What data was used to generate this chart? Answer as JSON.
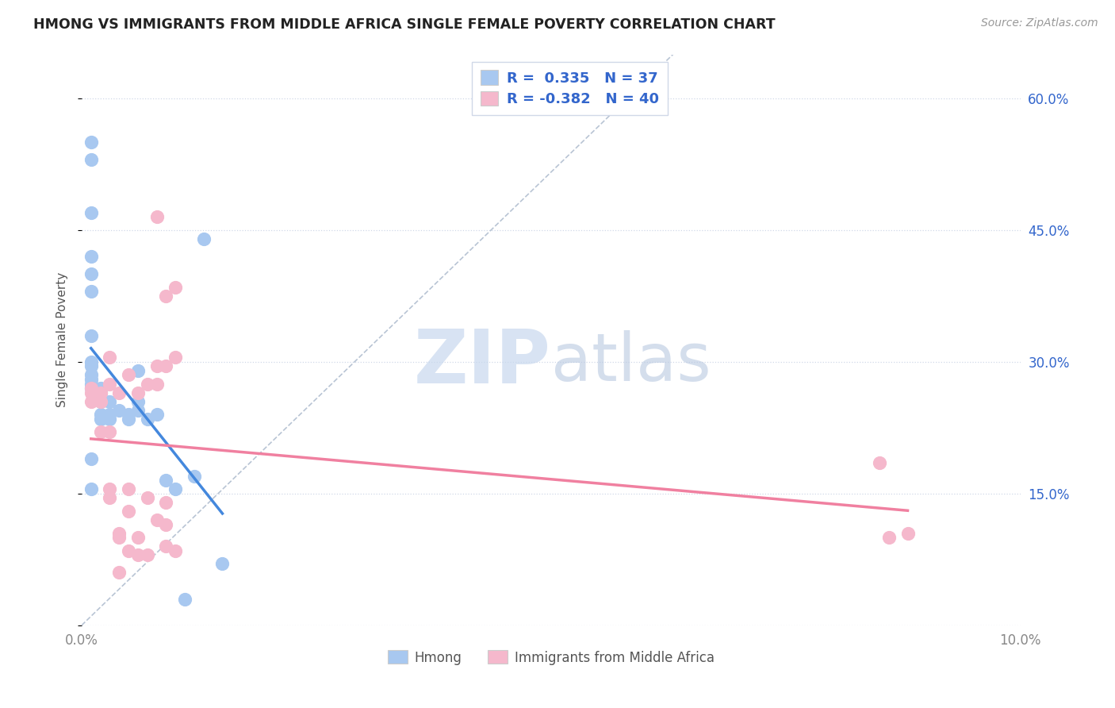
{
  "title": "HMONG VS IMMIGRANTS FROM MIDDLE AFRICA SINGLE FEMALE POVERTY CORRELATION CHART",
  "source": "Source: ZipAtlas.com",
  "ylabel": "Single Female Poverty",
  "x_min": 0.0,
  "x_max": 0.1,
  "y_min": 0.0,
  "y_max": 0.65,
  "x_ticks": [
    0.0,
    0.02,
    0.04,
    0.06,
    0.08,
    0.1
  ],
  "x_tick_labels": [
    "0.0%",
    "",
    "",
    "",
    "",
    "10.0%"
  ],
  "y_ticks": [
    0.0,
    0.15,
    0.3,
    0.45,
    0.6
  ],
  "y_tick_labels_right": [
    "",
    "15.0%",
    "30.0%",
    "45.0%",
    "60.0%"
  ],
  "hmong_R": 0.335,
  "hmong_N": 37,
  "africa_R": -0.382,
  "africa_N": 40,
  "hmong_color": "#a8c8f0",
  "africa_color": "#f5b8cc",
  "hmong_line_color": "#4488dd",
  "africa_line_color": "#f080a0",
  "dashed_line_color": "#b8c4d4",
  "legend_text_color": "#3366cc",
  "grid_color": "#d0d8e8",
  "watermark_zip_color": "#ccd8ee",
  "watermark_atlas_color": "#b8c8e0",
  "hmong_x": [
    0.001,
    0.001,
    0.001,
    0.001,
    0.001,
    0.001,
    0.001,
    0.001,
    0.001,
    0.001,
    0.001,
    0.001,
    0.001,
    0.001,
    0.001,
    0.002,
    0.002,
    0.002,
    0.002,
    0.002,
    0.003,
    0.003,
    0.003,
    0.004,
    0.005,
    0.005,
    0.006,
    0.006,
    0.006,
    0.007,
    0.008,
    0.009,
    0.01,
    0.011,
    0.012,
    0.013,
    0.015
  ],
  "hmong_y": [
    0.27,
    0.275,
    0.28,
    0.285,
    0.295,
    0.3,
    0.33,
    0.38,
    0.4,
    0.42,
    0.47,
    0.53,
    0.55,
    0.19,
    0.155,
    0.255,
    0.265,
    0.24,
    0.235,
    0.27,
    0.255,
    0.24,
    0.235,
    0.245,
    0.24,
    0.235,
    0.245,
    0.255,
    0.29,
    0.235,
    0.24,
    0.165,
    0.155,
    0.03,
    0.17,
    0.44,
    0.07
  ],
  "africa_x": [
    0.001,
    0.001,
    0.001,
    0.002,
    0.002,
    0.002,
    0.003,
    0.003,
    0.003,
    0.003,
    0.003,
    0.004,
    0.004,
    0.004,
    0.004,
    0.005,
    0.005,
    0.005,
    0.005,
    0.006,
    0.006,
    0.006,
    0.007,
    0.007,
    0.007,
    0.008,
    0.008,
    0.008,
    0.008,
    0.009,
    0.009,
    0.009,
    0.009,
    0.009,
    0.01,
    0.01,
    0.01,
    0.085,
    0.086,
    0.088
  ],
  "africa_y": [
    0.255,
    0.265,
    0.27,
    0.22,
    0.255,
    0.265,
    0.145,
    0.155,
    0.22,
    0.275,
    0.305,
    0.06,
    0.1,
    0.105,
    0.265,
    0.085,
    0.13,
    0.155,
    0.285,
    0.08,
    0.1,
    0.265,
    0.08,
    0.145,
    0.275,
    0.12,
    0.275,
    0.295,
    0.465,
    0.09,
    0.115,
    0.14,
    0.375,
    0.295,
    0.085,
    0.305,
    0.385,
    0.185,
    0.1,
    0.105
  ]
}
